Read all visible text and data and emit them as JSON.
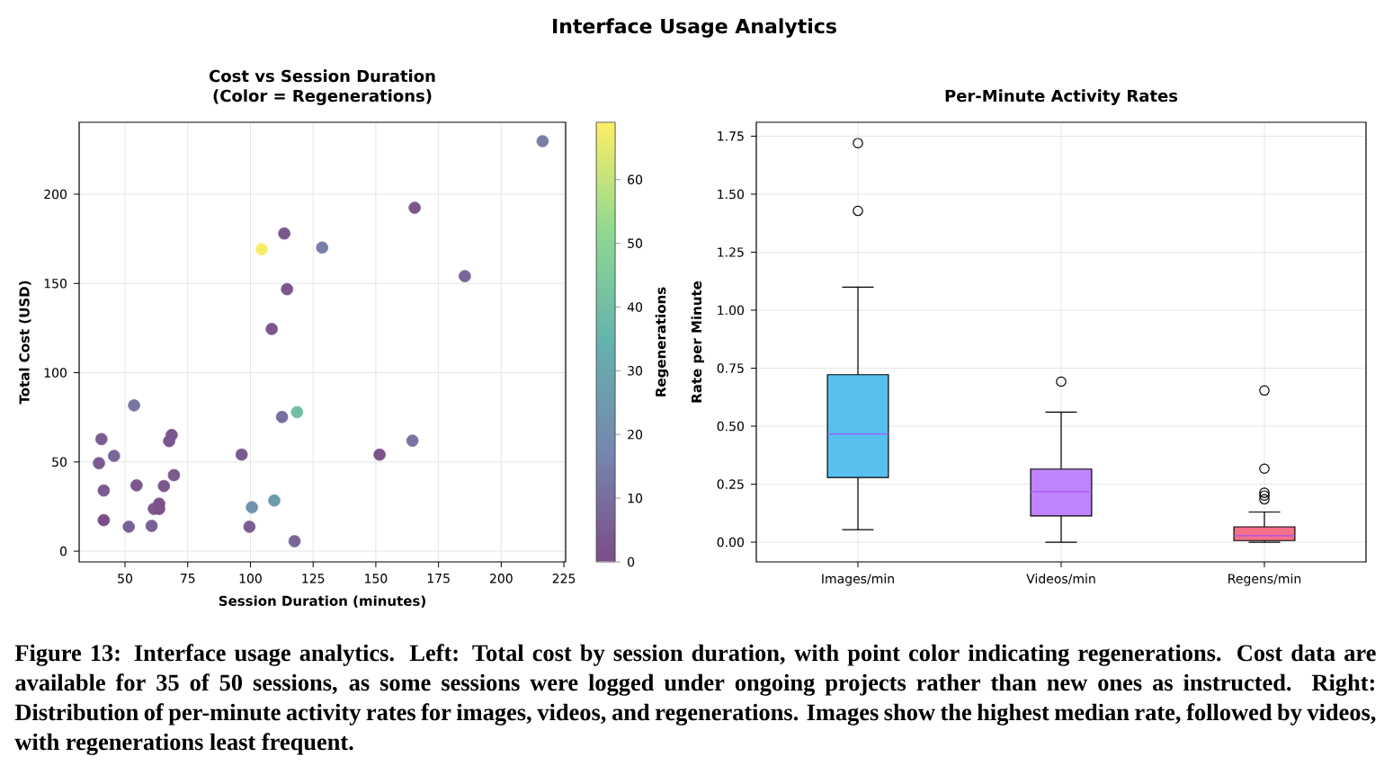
{
  "chart_data": [
    {
      "type": "scatter",
      "title": "Cost vs Session Duration",
      "subtitle": "(Color = Regenerations)",
      "xlabel": "Session Duration (minutes)",
      "ylabel": "Total Cost (USD)",
      "clabel": "Regenerations",
      "x": [
        216.5,
        165.5,
        113.5,
        104.5,
        128.6,
        185.5,
        114.6,
        108.5,
        53.6,
        118.6,
        112.6,
        40.6,
        68.6,
        67.6,
        45.6,
        39.6,
        96.5,
        151.5,
        164.6,
        69.5,
        54.6,
        65.5,
        41.5,
        109.5,
        100.6,
        63.6,
        61.5,
        63.6,
        41.5,
        51.5,
        60.6,
        99.6,
        117.6
      ],
      "values": [
        229.7,
        192.4,
        178,
        169.2,
        170.1,
        154.1,
        146.8,
        124.5,
        81.7,
        77.9,
        75.2,
        62.8,
        65.1,
        61.7,
        53.4,
        49.3,
        54.1,
        54.1,
        61.9,
        42.6,
        36.9,
        36.5,
        34,
        28.4,
        24.6,
        26.6,
        23.7,
        23.7,
        17.4,
        13.7,
        14.2,
        13.7,
        5.6
      ],
      "cvalues": [
        15,
        3,
        3,
        68,
        15,
        8,
        3,
        3,
        12,
        40,
        10,
        5,
        3,
        3,
        8,
        4,
        4,
        2,
        12,
        4,
        3,
        3,
        4,
        25,
        22,
        2,
        4,
        1,
        0,
        6,
        6,
        5,
        8
      ],
      "clim": [
        0,
        69
      ],
      "cticks": [
        0,
        10,
        20,
        30,
        40,
        50,
        60
      ],
      "xlim": [
        31.7,
        225.7
      ],
      "xticks": [
        50,
        75,
        100,
        125,
        150,
        175,
        200,
        225
      ],
      "ylim": [
        -6,
        240.3
      ],
      "yticks": [
        0,
        50,
        100,
        150,
        200
      ],
      "grid": true,
      "marker": "circle",
      "annotations": [
        "Interface Usage Analytics",
        "Figure 13: Interface usage analytics. Left: Total cost by session duration, with point color indicating regenerations. Cost data are available for 35 of 50 sessions, as some sessions were logged under ongoing projects rather than new ones as instructed. Right: Distribution of per-minute activity rates for images, videos, and regenerations. Images show the highest median rate, followed by videos, with regenerations least frequent."
      ]
    },
    {
      "type": "box",
      "title": "Per-Minute Activity Rates",
      "ylabel": "Rate per Minute",
      "categories": [
        "Images/min",
        "Videos/min",
        "Regens/min"
      ],
      "colors": [
        "#57c0ee",
        "#c084fc",
        "#f47189"
      ],
      "boxes": [
        {
          "low": 0.054,
          "q1": 0.279,
          "median": 0.467,
          "q3": 0.722,
          "high": 1.099,
          "outliers": [
            1.72,
            1.428
          ]
        },
        {
          "low": 0,
          "q1": 0.113,
          "median": 0.218,
          "q3": 0.315,
          "high": 0.561,
          "outliers": [
            0.692
          ]
        },
        {
          "low": 0,
          "q1": 0.007,
          "median": 0.028,
          "q3": 0.066,
          "high": 0.13,
          "outliers": [
            0.654,
            0.317,
            0.213,
            0.201,
            0.185
          ]
        }
      ],
      "ylim": [
        -0.085,
        1.81
      ],
      "yticks": [
        {
          "value": 0,
          "label": "0.00"
        },
        {
          "value": 0.25,
          "label": "0.25"
        },
        {
          "value": 0.5,
          "label": "0.50"
        },
        {
          "value": 0.75,
          "label": "0.75"
        },
        {
          "value": 1,
          "label": "1.00"
        },
        {
          "value": 1.25,
          "label": "1.25"
        },
        {
          "value": 1.5,
          "label": "1.50"
        },
        {
          "value": 1.75,
          "label": "1.75"
        }
      ],
      "grid": true
    }
  ]
}
